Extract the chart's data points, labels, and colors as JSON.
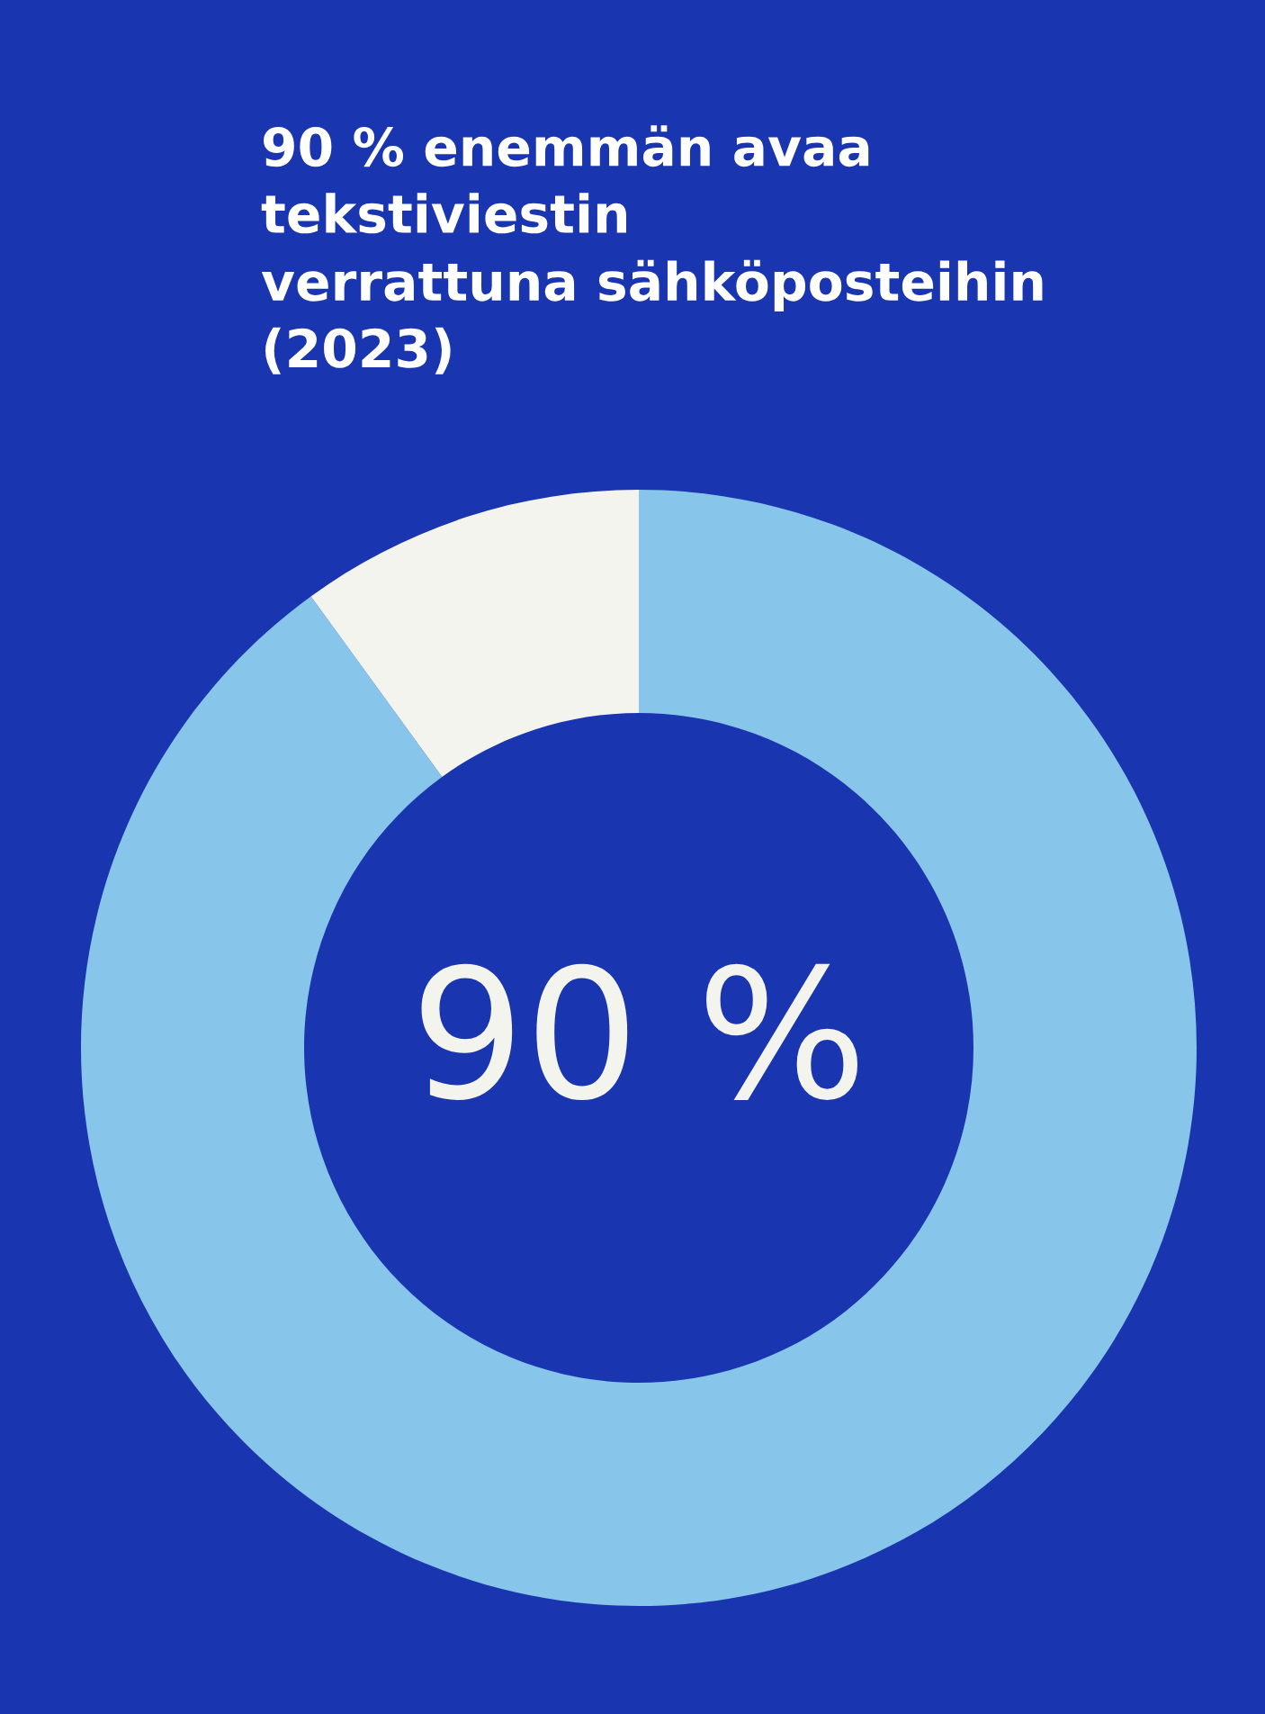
{
  "chart_data": {
    "type": "donut",
    "title": "90 % enemmän avaa\ntekstiviestin\nverrattuna sähköposteihin\n(2023)",
    "categories": [
      null,
      null
    ],
    "values": [
      90,
      10
    ],
    "colors": [
      "#87c5ea",
      "#f4f4ee"
    ],
    "annotations": [
      "90 %"
    ]
  }
}
